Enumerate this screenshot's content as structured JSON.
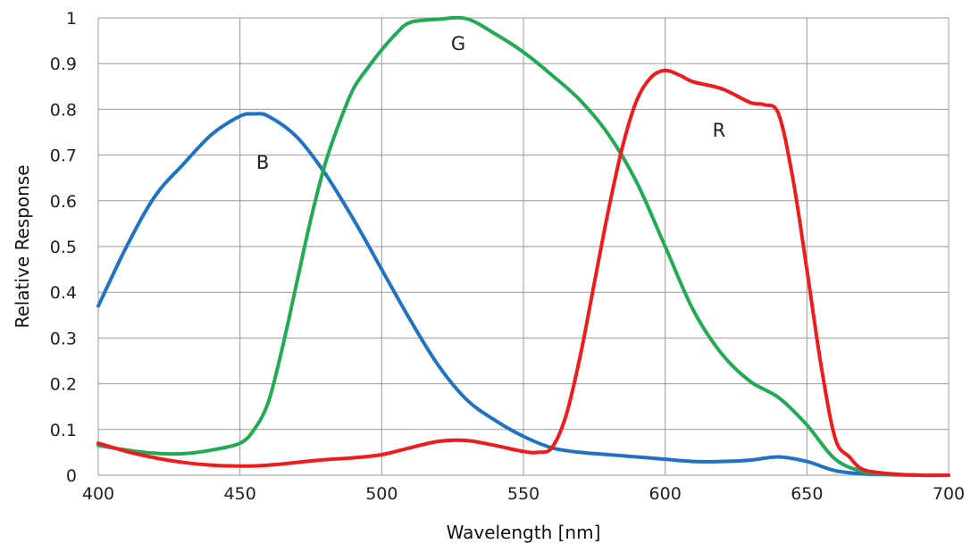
{
  "chart_data": {
    "type": "line",
    "xlabel": "Wavelength [nm]",
    "ylabel": "Relative Response",
    "xlim": [
      400,
      700
    ],
    "ylim": [
      0,
      1
    ],
    "xticks": [
      "400",
      "450",
      "500",
      "550",
      "600",
      "650",
      "700"
    ],
    "yticks": [
      "0",
      "0.1",
      "0.2",
      "0.3",
      "0.4",
      "0.5",
      "0.6",
      "0.7",
      "0.8",
      "0.9",
      "1"
    ],
    "grid": true,
    "series": [
      {
        "name": "B",
        "color": "#1f73c2",
        "label_at": [
          458,
          0.67
        ],
        "x": [
          400,
          410,
          420,
          430,
          440,
          450,
          455,
          460,
          470,
          480,
          490,
          500,
          510,
          520,
          530,
          540,
          550,
          560,
          570,
          580,
          590,
          600,
          610,
          620,
          630,
          640,
          650,
          660,
          670,
          680,
          690,
          700
        ],
        "y": [
          0.37,
          0.5,
          0.61,
          0.68,
          0.745,
          0.785,
          0.79,
          0.785,
          0.74,
          0.66,
          0.56,
          0.45,
          0.34,
          0.24,
          0.165,
          0.12,
          0.085,
          0.06,
          0.05,
          0.045,
          0.04,
          0.035,
          0.03,
          0.03,
          0.033,
          0.04,
          0.03,
          0.01,
          0.003,
          0.001,
          0,
          0
        ]
      },
      {
        "name": "G",
        "color": "#22aa55",
        "label_at": [
          527,
          0.93
        ],
        "x": [
          400,
          410,
          420,
          430,
          440,
          450,
          455,
          460,
          465,
          470,
          475,
          480,
          485,
          490,
          495,
          500,
          505,
          510,
          520,
          530,
          540,
          550,
          560,
          570,
          580,
          590,
          600,
          610,
          620,
          630,
          640,
          650,
          660,
          670,
          680,
          690,
          700
        ],
        "y": [
          0.065,
          0.055,
          0.048,
          0.047,
          0.055,
          0.07,
          0.1,
          0.16,
          0.28,
          0.42,
          0.56,
          0.68,
          0.77,
          0.845,
          0.89,
          0.93,
          0.965,
          0.99,
          0.997,
          0.998,
          0.965,
          0.925,
          0.875,
          0.82,
          0.745,
          0.64,
          0.5,
          0.36,
          0.265,
          0.205,
          0.17,
          0.11,
          0.035,
          0.008,
          0.002,
          0,
          0
        ]
      },
      {
        "name": "R",
        "color": "#ee1c1c",
        "label_at": [
          619,
          0.74
        ],
        "x": [
          400,
          410,
          420,
          430,
          440,
          450,
          460,
          470,
          480,
          490,
          500,
          510,
          520,
          530,
          540,
          550,
          555,
          560,
          565,
          570,
          575,
          580,
          585,
          590,
          595,
          600,
          605,
          610,
          620,
          630,
          635,
          640,
          645,
          650,
          655,
          660,
          665,
          670,
          680,
          690,
          700
        ],
        "y": [
          0.07,
          0.052,
          0.038,
          0.028,
          0.022,
          0.02,
          0.022,
          0.028,
          0.034,
          0.038,
          0.045,
          0.06,
          0.074,
          0.076,
          0.065,
          0.052,
          0.05,
          0.06,
          0.13,
          0.26,
          0.42,
          0.58,
          0.72,
          0.82,
          0.87,
          0.885,
          0.875,
          0.86,
          0.845,
          0.815,
          0.81,
          0.79,
          0.65,
          0.45,
          0.24,
          0.08,
          0.04,
          0.012,
          0.003,
          0,
          0
        ]
      }
    ]
  }
}
